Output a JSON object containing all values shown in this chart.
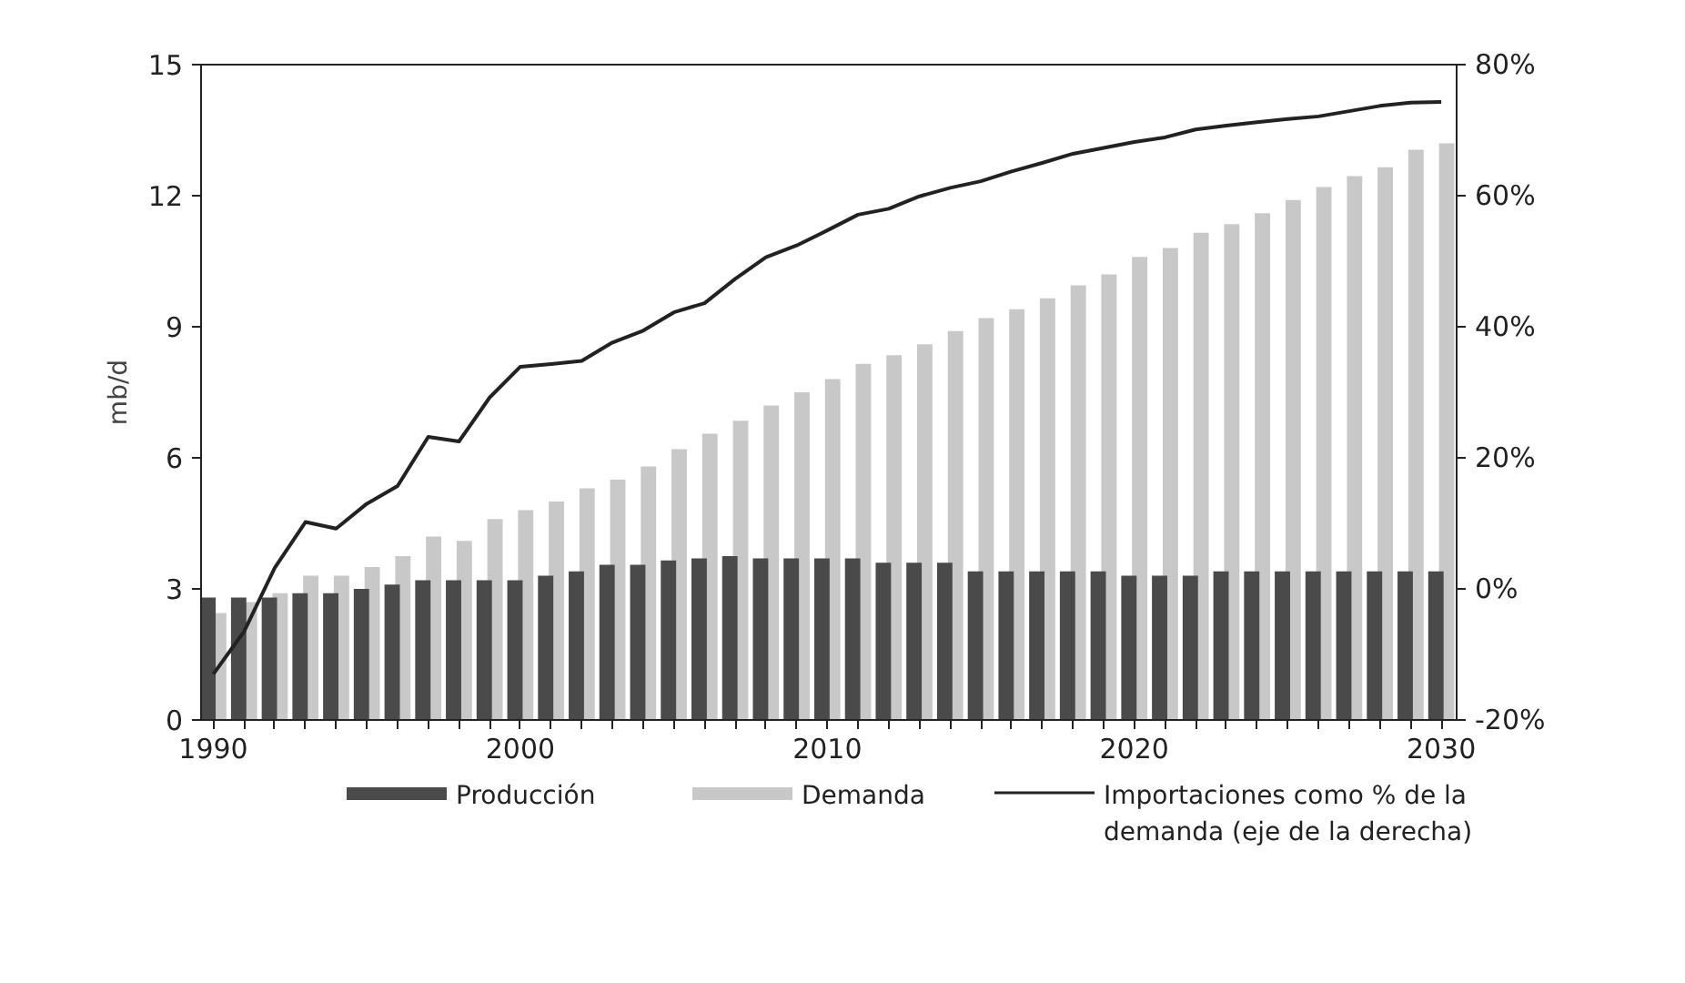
{
  "chart_data": {
    "type": "bar",
    "ylabel": "mb/d",
    "x": [
      1990,
      1991,
      1992,
      1993,
      1994,
      1995,
      1996,
      1997,
      1998,
      1999,
      2000,
      2001,
      2002,
      2003,
      2004,
      2005,
      2006,
      2007,
      2008,
      2009,
      2010,
      2011,
      2012,
      2013,
      2014,
      2015,
      2016,
      2017,
      2018,
      2019,
      2020,
      2021,
      2022,
      2023,
      2024,
      2025,
      2026,
      2027,
      2028,
      2029,
      2030
    ],
    "series": [
      {
        "name": "Producción",
        "color": "#4a4a4a",
        "values": [
          2.8,
          2.8,
          2.8,
          2.9,
          2.9,
          3.0,
          3.1,
          3.2,
          3.2,
          3.2,
          3.2,
          3.3,
          3.4,
          3.55,
          3.55,
          3.65,
          3.7,
          3.75,
          3.7,
          3.7,
          3.7,
          3.7,
          3.6,
          3.6,
          3.6,
          3.4,
          3.4,
          3.4,
          3.4,
          3.4,
          3.3,
          3.3,
          3.3,
          3.4,
          3.4,
          3.4,
          3.4,
          3.4,
          3.4,
          3.4,
          3.4
        ]
      },
      {
        "name": "Demanda",
        "color": "#c8c8c8",
        "values": [
          2.45,
          2.7,
          2.9,
          3.3,
          3.3,
          3.5,
          3.75,
          4.2,
          4.1,
          4.6,
          4.8,
          5.0,
          5.3,
          5.5,
          5.8,
          6.2,
          6.55,
          6.85,
          7.2,
          7.5,
          7.8,
          8.15,
          8.35,
          8.6,
          8.9,
          9.2,
          9.4,
          9.65,
          9.95,
          10.2,
          10.6,
          10.8,
          11.15,
          11.35,
          11.6,
          11.9,
          12.2,
          12.45,
          12.65,
          13.05,
          13.2
        ]
      },
      {
        "name": "Importaciones como % de la demanda (eje de la derecha)",
        "type": "line",
        "axis": "y2",
        "color": "#222222",
        "values": [
          -13,
          -6.5,
          3.2,
          10.2,
          9.2,
          13,
          15.7,
          23.2,
          22.5,
          29.2,
          33.9,
          34.3,
          34.8,
          37.6,
          39.4,
          42.2,
          43.6,
          47.3,
          50.6,
          52.4,
          54.7,
          57.1,
          58,
          59.9,
          61.2,
          62.2,
          63.7,
          65,
          66.4,
          67.3,
          68.2,
          68.9,
          70.1,
          70.7,
          71.2,
          71.7,
          72.1,
          72.9,
          73.7,
          74.2,
          74.3
        ]
      }
    ],
    "xlim": [
      1989.6,
      2030.5
    ],
    "xticks": [
      1990,
      {
        "value": 1991,
        "label": null
      },
      {
        "value": 1992,
        "label": null
      },
      {
        "value": 1993,
        "label": null
      },
      {
        "value": 1994,
        "label": null
      },
      {
        "value": 1995,
        "label": null
      },
      {
        "value": 1996,
        "label": null
      },
      {
        "value": 1997,
        "label": null
      },
      {
        "value": 1998,
        "label": null
      },
      {
        "value": 1999,
        "label": null
      },
      2000,
      {
        "value": 2001,
        "label": null
      },
      {
        "value": 2002,
        "label": null
      },
      {
        "value": 2003,
        "label": null
      },
      {
        "value": 2004,
        "label": null
      },
      {
        "value": 2005,
        "label": null
      },
      {
        "value": 2006,
        "label": null
      },
      {
        "value": 2007,
        "label": null
      },
      {
        "value": 2008,
        "label": null
      },
      {
        "value": 2009,
        "label": null
      },
      2010,
      {
        "value": 2011,
        "label": null
      },
      {
        "value": 2012,
        "label": null
      },
      {
        "value": 2013,
        "label": null
      },
      {
        "value": 2014,
        "label": null
      },
      {
        "value": 2015,
        "label": null
      },
      {
        "value": 2016,
        "label": null
      },
      {
        "value": 2017,
        "label": null
      },
      {
        "value": 2018,
        "label": null
      },
      {
        "value": 2019,
        "label": null
      },
      2020,
      {
        "value": 2021,
        "label": null
      },
      {
        "value": 2022,
        "label": null
      },
      {
        "value": 2023,
        "label": null
      },
      {
        "value": 2024,
        "label": null
      },
      {
        "value": 2025,
        "label": null
      },
      {
        "value": 2026,
        "label": null
      },
      {
        "value": 2027,
        "label": null
      },
      {
        "value": 2028,
        "label": null
      },
      {
        "value": 2029,
        "label": null
      },
      2030
    ],
    "ylim": [
      0,
      15
    ],
    "yticks": [
      0,
      3,
      6,
      9,
      12,
      15
    ],
    "y2lim": [
      -20,
      80
    ],
    "y2ticks": [
      {
        "value": -20,
        "label": "-20%"
      },
      {
        "value": 0,
        "label": "0%"
      },
      {
        "value": 20,
        "label": "20%"
      },
      {
        "value": 40,
        "label": "40%"
      },
      {
        "value": 60,
        "label": "60%"
      },
      {
        "value": 80,
        "label": "80%"
      }
    ],
    "grid": false,
    "legend": "bottom"
  }
}
